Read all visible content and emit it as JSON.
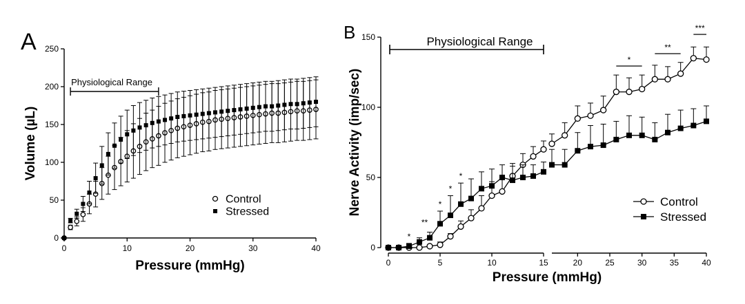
{
  "chart_data": [
    {
      "panel": "A",
      "type": "scatter",
      "xlabel": "Pressure (mmHg)",
      "ylabel": "Volume (µL)",
      "xlim": [
        0,
        40
      ],
      "ylim": [
        0,
        250
      ],
      "x_ticks": [
        0,
        10,
        20,
        30,
        40
      ],
      "y_ticks": [
        0,
        50,
        100,
        150,
        200,
        250
      ],
      "annotation": {
        "text": "Physiological Range",
        "x_start": 1,
        "x_end": 15
      },
      "legend": {
        "placement": "center-right",
        "entries": [
          "Control",
          "Stressed"
        ]
      },
      "grid": false,
      "error_bars": "upper-and-lower",
      "x": [
        0,
        1,
        2,
        3,
        4,
        5,
        6,
        7,
        8,
        9,
        10,
        11,
        12,
        13,
        14,
        15,
        16,
        17,
        18,
        19,
        20,
        21,
        22,
        23,
        24,
        25,
        26,
        27,
        28,
        29,
        30,
        31,
        32,
        33,
        34,
        35,
        36,
        37,
        38,
        39,
        40
      ],
      "series": [
        {
          "name": "Control",
          "marker": "open-circle",
          "values": [
            0,
            14,
            22,
            31,
            45,
            58,
            72,
            83,
            93,
            101,
            108,
            115,
            121,
            127,
            131,
            135,
            139,
            142,
            145,
            147,
            149,
            151,
            153,
            154,
            156,
            157,
            158,
            159,
            160,
            161,
            162,
            163,
            164,
            165,
            165,
            166,
            167,
            168,
            168,
            169,
            170
          ],
          "error": [
            0,
            3,
            6,
            9,
            13,
            17,
            21,
            25,
            29,
            32,
            34,
            36,
            37,
            38,
            38,
            39,
            39,
            39,
            39,
            39,
            39,
            39,
            39,
            39,
            39,
            39,
            39,
            39,
            39,
            39,
            39,
            39,
            39,
            39,
            39,
            39,
            39,
            39,
            39,
            39,
            39
          ]
        },
        {
          "name": "Stressed",
          "marker": "filled-square",
          "values": [
            0,
            23,
            32,
            45,
            60,
            79,
            96,
            111,
            122,
            130,
            137,
            142,
            146,
            149,
            152,
            154,
            156,
            158,
            160,
            161,
            162,
            163,
            164,
            165,
            166,
            167,
            168,
            169,
            170,
            171,
            172,
            173,
            174,
            174,
            175,
            176,
            177,
            177,
            178,
            179,
            180
          ],
          "error": [
            0,
            3,
            6,
            10,
            15,
            20,
            25,
            28,
            30,
            31,
            32,
            33,
            33,
            33,
            33,
            33,
            33,
            33,
            33,
            33,
            33,
            33,
            33,
            33,
            33,
            33,
            33,
            33,
            33,
            33,
            33,
            33,
            33,
            33,
            33,
            33,
            33,
            33,
            33,
            33,
            33
          ]
        }
      ]
    },
    {
      "panel": "B",
      "type": "line",
      "xlabel": "Pressure (mmHg)",
      "ylabel": "Nerve Activity (imp/sec)",
      "ylim": [
        0,
        150
      ],
      "x_ticks": [
        0,
        5,
        10,
        15,
        20,
        25,
        30,
        35,
        40
      ],
      "y_ticks": [
        0,
        50,
        100,
        150
      ],
      "x_axis_break": [
        15,
        16
      ],
      "annotation": {
        "text": "Physiological Range",
        "x_start": 0,
        "x_end": 15
      },
      "legend": {
        "placement": "bottom-right",
        "entries": [
          "Control",
          "Stressed"
        ]
      },
      "grid": false,
      "error_bars": "upper-only",
      "significance": [
        {
          "x": 2,
          "label": "*"
        },
        {
          "x": 3.5,
          "label": "**"
        },
        {
          "x": 5,
          "label": "*"
        },
        {
          "x": 6,
          "label": "*"
        },
        {
          "x": 7,
          "label": "*"
        },
        {
          "x_start": 26,
          "x_end": 30,
          "label": "*"
        },
        {
          "x_start": 32,
          "x_end": 36,
          "label": "**"
        },
        {
          "x_start": 38,
          "x_end": 40,
          "label": "***"
        }
      ],
      "series": [
        {
          "name": "Control",
          "marker": "open-circle",
          "x": [
            0,
            1,
            2,
            3,
            4,
            5,
            6,
            7,
            8,
            9,
            10,
            11,
            12,
            13,
            14,
            15,
            16,
            18,
            20,
            22,
            24,
            26,
            28,
            30,
            32,
            34,
            36,
            38,
            40
          ],
          "values": [
            0,
            0,
            0,
            0,
            1,
            2,
            8,
            15,
            21,
            28,
            37,
            40,
            51,
            59,
            65,
            70,
            74,
            80,
            92,
            94,
            98,
            111,
            111,
            113,
            120,
            120,
            124,
            135,
            134
          ],
          "error": [
            0,
            1,
            1,
            1,
            1,
            2,
            2,
            4,
            6,
            9,
            10,
            10,
            9,
            8,
            7,
            6,
            7,
            9,
            9,
            9,
            10,
            12,
            10,
            10,
            10,
            9,
            8,
            8,
            9
          ]
        },
        {
          "name": "Stressed",
          "marker": "filled-square",
          "x": [
            0,
            1,
            2,
            3,
            4,
            5,
            6,
            7,
            8,
            9,
            10,
            11,
            12,
            13,
            14,
            15,
            16,
            18,
            20,
            22,
            24,
            26,
            28,
            30,
            32,
            34,
            36,
            38,
            40
          ],
          "values": [
            0,
            0,
            1,
            4,
            7,
            17,
            23,
            31,
            35,
            42,
            44,
            50,
            48,
            50,
            51,
            54,
            59,
            59,
            69,
            72,
            73,
            77,
            80,
            80,
            77,
            82,
            85,
            87,
            90
          ],
          "error": [
            0,
            1,
            2,
            3,
            4,
            9,
            14,
            15,
            14,
            12,
            12,
            9,
            10,
            9,
            8,
            7,
            11,
            11,
            13,
            15,
            15,
            13,
            14,
            13,
            12,
            13,
            13,
            12,
            11
          ]
        }
      ]
    }
  ]
}
